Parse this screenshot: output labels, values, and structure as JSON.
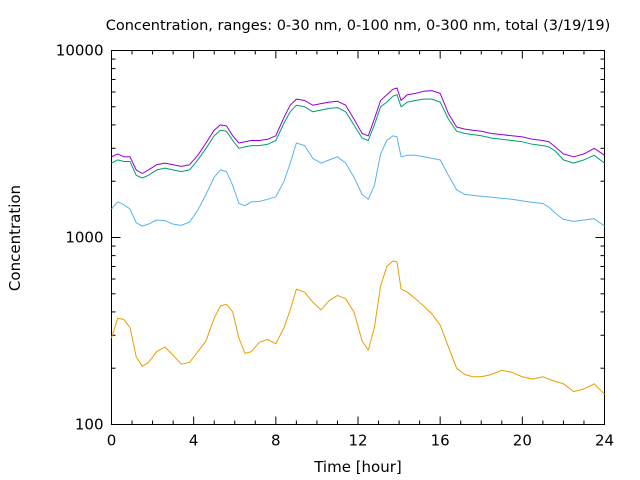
{
  "chart_data": {
    "type": "line",
    "title": "Concentration, ranges: 0-30 nm, 0-100 nm, 0-300 nm, total (3/19/19)",
    "xlabel": "Time [hour]",
    "ylabel": "Concentration",
    "xlim": [
      0,
      24
    ],
    "ylim": [
      100,
      10000
    ],
    "yscale": "log",
    "grid": false,
    "legend": "none",
    "x_ticks": [
      0,
      4,
      8,
      12,
      16,
      20,
      24
    ],
    "x_tick_labels": [
      "0",
      "4",
      "8",
      "12",
      "16",
      "20",
      "24"
    ],
    "y_major_ticks": [
      100,
      1000,
      10000
    ],
    "y_major_tick_labels": [
      "100",
      "1000",
      "10000"
    ],
    "series": [
      {
        "color": "#e69f00",
        "x": [
          0,
          0.3,
          0.6,
          0.9,
          1.2,
          1.5,
          1.8,
          2.2,
          2.6,
          3.0,
          3.4,
          3.8,
          4.2,
          4.6,
          5.0,
          5.3,
          5.6,
          5.9,
          6.2,
          6.5,
          6.8,
          7.2,
          7.6,
          8.0,
          8.4,
          8.7,
          9.0,
          9.4,
          9.8,
          10.2,
          10.6,
          11.0,
          11.4,
          11.8,
          12.2,
          12.5,
          12.8,
          13.1,
          13.4,
          13.7,
          13.9,
          14.1,
          14.4,
          14.8,
          15.2,
          15.6,
          16.0,
          16.4,
          16.8,
          17.2,
          17.6,
          18.0,
          18.5,
          19.0,
          19.5,
          20.0,
          20.5,
          21.0,
          21.3,
          21.6,
          22.0,
          22.5,
          23.0,
          23.5,
          24.0
        ],
        "y": [
          290,
          370,
          365,
          330,
          230,
          205,
          215,
          245,
          260,
          235,
          210,
          215,
          245,
          280,
          370,
          430,
          440,
          400,
          290,
          240,
          245,
          275,
          285,
          270,
          330,
          410,
          530,
          510,
          450,
          410,
          460,
          490,
          470,
          400,
          280,
          250,
          330,
          550,
          700,
          750,
          740,
          530,
          510,
          470,
          430,
          390,
          340,
          260,
          200,
          185,
          180,
          180,
          185,
          195,
          190,
          180,
          175,
          180,
          175,
          170,
          165,
          150,
          155,
          165,
          145
        ]
      },
      {
        "color": "#56b4e9",
        "x": [
          0,
          0.3,
          0.6,
          0.9,
          1.2,
          1.5,
          1.8,
          2.2,
          2.6,
          3.0,
          3.4,
          3.8,
          4.2,
          4.6,
          5.0,
          5.3,
          5.6,
          5.9,
          6.2,
          6.5,
          6.8,
          7.2,
          7.6,
          8.0,
          8.4,
          8.7,
          9.0,
          9.4,
          9.8,
          10.2,
          10.6,
          11.0,
          11.4,
          11.8,
          12.2,
          12.5,
          12.8,
          13.1,
          13.4,
          13.7,
          13.9,
          14.1,
          14.4,
          14.8,
          15.2,
          15.6,
          16.0,
          16.4,
          16.8,
          17.2,
          17.6,
          18.0,
          18.5,
          19.0,
          19.5,
          20.0,
          20.5,
          21.0,
          21.3,
          21.6,
          22.0,
          22.5,
          23.0,
          23.5,
          24.0
        ],
        "y": [
          1420,
          1550,
          1500,
          1420,
          1200,
          1150,
          1180,
          1240,
          1230,
          1180,
          1160,
          1210,
          1400,
          1700,
          2100,
          2300,
          2250,
          1900,
          1520,
          1480,
          1550,
          1560,
          1600,
          1650,
          2000,
          2500,
          3200,
          3100,
          2650,
          2500,
          2600,
          2700,
          2500,
          2100,
          1700,
          1600,
          1900,
          2800,
          3300,
          3500,
          3450,
          2700,
          2750,
          2750,
          2700,
          2650,
          2600,
          2150,
          1800,
          1700,
          1680,
          1660,
          1640,
          1620,
          1600,
          1570,
          1540,
          1520,
          1450,
          1350,
          1250,
          1220,
          1240,
          1260,
          1150
        ]
      },
      {
        "color": "#009e73",
        "x": [
          0,
          0.3,
          0.6,
          0.9,
          1.2,
          1.5,
          1.8,
          2.2,
          2.6,
          3.0,
          3.4,
          3.8,
          4.2,
          4.6,
          5.0,
          5.3,
          5.6,
          5.9,
          6.2,
          6.5,
          6.8,
          7.2,
          7.6,
          8.0,
          8.4,
          8.7,
          9.0,
          9.4,
          9.8,
          10.2,
          10.6,
          11.0,
          11.4,
          11.8,
          12.2,
          12.5,
          12.8,
          13.1,
          13.4,
          13.7,
          13.9,
          14.1,
          14.4,
          14.8,
          15.2,
          15.6,
          16.0,
          16.4,
          16.8,
          17.2,
          17.6,
          18.0,
          18.5,
          19.0,
          19.5,
          20.0,
          20.5,
          21.0,
          21.3,
          21.6,
          22.0,
          22.5,
          23.0,
          23.5,
          24.0
        ],
        "y": [
          2500,
          2600,
          2550,
          2550,
          2150,
          2080,
          2150,
          2300,
          2350,
          2300,
          2250,
          2300,
          2600,
          3000,
          3500,
          3750,
          3700,
          3300,
          3000,
          3050,
          3100,
          3100,
          3150,
          3300,
          4100,
          4700,
          5100,
          5000,
          4700,
          4800,
          4900,
          4950,
          4700,
          4000,
          3400,
          3300,
          4000,
          5000,
          5300,
          5700,
          5800,
          5000,
          5300,
          5400,
          5500,
          5500,
          5300,
          4300,
          3700,
          3600,
          3550,
          3500,
          3400,
          3350,
          3300,
          3250,
          3150,
          3100,
          3050,
          2900,
          2600,
          2500,
          2600,
          2750,
          2500
        ]
      },
      {
        "color": "#9400d3",
        "x": [
          0,
          0.3,
          0.6,
          0.9,
          1.2,
          1.5,
          1.8,
          2.2,
          2.6,
          3.0,
          3.4,
          3.8,
          4.2,
          4.6,
          5.0,
          5.3,
          5.6,
          5.9,
          6.2,
          6.5,
          6.8,
          7.2,
          7.6,
          8.0,
          8.4,
          8.7,
          9.0,
          9.4,
          9.8,
          10.2,
          10.6,
          11.0,
          11.4,
          11.8,
          12.2,
          12.5,
          12.8,
          13.1,
          13.4,
          13.7,
          13.9,
          14.1,
          14.4,
          14.8,
          15.2,
          15.6,
          16.0,
          16.4,
          16.8,
          17.2,
          17.6,
          18.0,
          18.5,
          19.0,
          19.5,
          20.0,
          20.5,
          21.0,
          21.3,
          21.6,
          22.0,
          22.5,
          23.0,
          23.5,
          24.0
        ],
        "y": [
          2700,
          2800,
          2700,
          2700,
          2300,
          2200,
          2300,
          2450,
          2500,
          2450,
          2400,
          2450,
          2750,
          3200,
          3750,
          4000,
          3950,
          3500,
          3200,
          3250,
          3300,
          3300,
          3350,
          3500,
          4400,
          5100,
          5500,
          5400,
          5100,
          5200,
          5300,
          5350,
          5100,
          4300,
          3600,
          3500,
          4300,
          5400,
          5800,
          6200,
          6300,
          5400,
          5800,
          5900,
          6050,
          6100,
          5900,
          4600,
          3900,
          3800,
          3750,
          3700,
          3600,
          3550,
          3500,
          3450,
          3350,
          3300,
          3250,
          3050,
          2800,
          2700,
          2800,
          3000,
          2750
        ]
      }
    ]
  }
}
